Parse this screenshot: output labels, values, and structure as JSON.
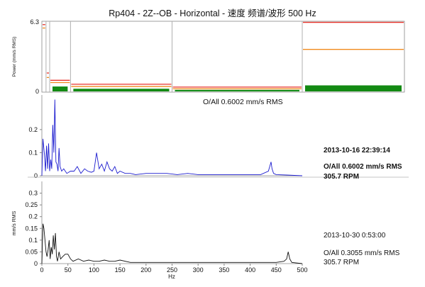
{
  "title": "Rp404 - 2Z--OB - Horizontal - 速度 频谱/波形 500 Hz",
  "colors": {
    "trend_red": "#e8322b",
    "trend_orange": "#f08a1c",
    "trend_green": "#138a13",
    "spectrum1": "#1c1ccf",
    "spectrum2": "#111111",
    "divider": "#b0b0b0"
  },
  "chart_data": [
    {
      "type": "bar",
      "panel": "trend",
      "ylabel": "Power (mm/s RMS)",
      "ylim": [
        0,
        6.3
      ],
      "y_tick_labels": [
        "6.3",
        "0"
      ],
      "x_range_hz": [
        0,
        500
      ],
      "alarm_bands": [
        {
          "from_hz": 0,
          "to_hz": 8,
          "alert": 5.7,
          "danger": 6.0,
          "level": 0.05
        },
        {
          "from_hz": 8,
          "to_hz": 15,
          "alert": 1.3,
          "danger": 1.7,
          "level": 0.06
        },
        {
          "from_hz": 15,
          "to_hz": 55,
          "alert": 0.85,
          "danger": 1.05,
          "level": 0.5
        },
        {
          "from_hz": 55,
          "to_hz": 250,
          "alert": 0.5,
          "danger": 0.7,
          "level": 0.3
        },
        {
          "from_hz": 250,
          "to_hz": 500,
          "alert": 0.3,
          "danger": 0.45,
          "level": 0.2
        },
        {
          "from_hz": 500,
          "to_hz": 570,
          "alert": 3.8,
          "danger": 6.2,
          "level": 0.6
        }
      ],
      "overall_label": "O/All 0.6002 mm/s RMS"
    },
    {
      "type": "line",
      "panel": "spectrum1",
      "ylim": [
        0,
        0.35
      ],
      "y_tick_labels": [
        "0.2",
        "0.1",
        "0"
      ],
      "x": [
        0,
        2,
        5,
        7,
        9,
        11,
        13,
        15,
        17,
        19,
        21,
        23,
        25,
        27,
        29,
        31,
        33,
        35,
        38,
        42,
        48,
        55,
        62,
        68,
        75,
        82,
        88,
        95,
        100,
        105,
        110,
        115,
        120,
        125,
        130,
        135,
        140,
        145,
        150,
        160,
        170,
        180,
        200,
        220,
        240,
        260,
        280,
        300,
        320,
        340,
        360,
        380,
        400,
        420,
        435,
        440,
        442,
        445,
        450,
        470,
        500
      ],
      "y": [
        0.0,
        0.16,
        0.09,
        0.02,
        0.13,
        0.03,
        0.14,
        0.02,
        0.07,
        0.03,
        0.22,
        0.1,
        0.33,
        0.06,
        0.05,
        0.02,
        0.12,
        0.04,
        0.02,
        0.03,
        0.01,
        0.02,
        0.02,
        0.04,
        0.01,
        0.03,
        0.02,
        0.015,
        0.02,
        0.1,
        0.03,
        0.05,
        0.02,
        0.06,
        0.03,
        0.02,
        0.04,
        0.01,
        0.02,
        0.01,
        0.01,
        0.005,
        0.01,
        0.01,
        0.01,
        0.005,
        0.01,
        0.005,
        0.005,
        0.005,
        0.005,
        0.005,
        0.005,
        0.005,
        0.02,
        0.06,
        0.03,
        0.01,
        0.005,
        0.003,
        0.0
      ],
      "date": "2013-10-16 22:39:14",
      "overall": "O/All 0.6002 mm/s RMS",
      "rpm": "305.7 RPM"
    },
    {
      "type": "line",
      "panel": "spectrum2",
      "ylabel": "mm/s RMS",
      "xlabel": "Hz",
      "xlim": [
        0,
        500
      ],
      "ylim": [
        0,
        0.35
      ],
      "y_tick_labels": [
        "0.3",
        "0.25",
        "0.2",
        "0.15",
        "0.1",
        "0.05",
        "0"
      ],
      "x_tick_labels": [
        "0",
        "50",
        "100",
        "150",
        "200",
        "250",
        "300",
        "350",
        "400",
        "450",
        "500"
      ],
      "x": [
        0,
        2,
        4,
        6,
        8,
        10,
        12,
        14,
        16,
        18,
        20,
        22,
        24,
        26,
        28,
        30,
        33,
        36,
        40,
        45,
        50,
        55,
        60,
        70,
        80,
        90,
        100,
        110,
        120,
        130,
        140,
        150,
        170,
        200,
        250,
        300,
        350,
        400,
        450,
        465,
        470,
        473,
        476,
        480,
        500
      ],
      "y": [
        0.0,
        0.17,
        0.15,
        0.1,
        0.05,
        0.03,
        0.06,
        0.1,
        0.02,
        0.07,
        0.04,
        0.12,
        0.06,
        0.13,
        0.03,
        0.01,
        0.05,
        0.02,
        0.03,
        0.04,
        0.04,
        0.02,
        0.01,
        0.02,
        0.01,
        0.015,
        0.01,
        0.01,
        0.015,
        0.01,
        0.01,
        0.015,
        0.005,
        0.005,
        0.005,
        0.005,
        0.005,
        0.005,
        0.005,
        0.01,
        0.02,
        0.05,
        0.02,
        0.005,
        0.0
      ],
      "date": "2013-10-30 0:53:00",
      "overall": "O/All 0.3055 mm/s RMS",
      "rpm": "305.7 RPM"
    }
  ]
}
